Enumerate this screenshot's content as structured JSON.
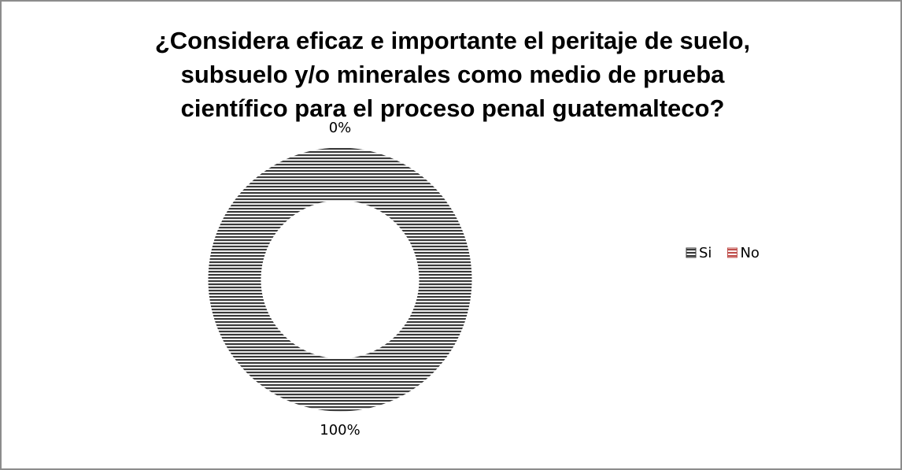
{
  "chart_data": {
    "type": "donut",
    "title": "¿Considera eficaz e importante el peritaje de suelo, subsuelo y/o minerales como medio de prueba científico para el proceso penal guatemalteco?",
    "categories": [
      "Si",
      "No"
    ],
    "values": [
      100,
      0
    ],
    "value_labels": [
      "100%",
      "0%"
    ],
    "colors": [
      "#3a3a3a",
      "#c0504d"
    ],
    "legend": "right"
  }
}
